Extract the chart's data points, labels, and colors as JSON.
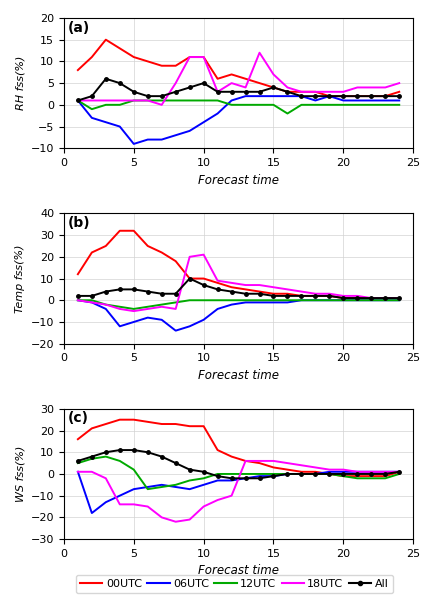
{
  "forecast_time": [
    1,
    2,
    3,
    4,
    5,
    6,
    7,
    8,
    9,
    10,
    11,
    12,
    13,
    14,
    15,
    16,
    17,
    18,
    19,
    20,
    21,
    22,
    23,
    24
  ],
  "panel_a": {
    "title": "(a)",
    "ylabel": "RH fss(%)",
    "ylim": [
      -10,
      20
    ],
    "yticks": [
      -10,
      -5,
      0,
      5,
      10,
      15,
      20
    ],
    "00UTC": [
      8,
      11,
      15,
      13,
      11,
      10,
      9,
      9,
      11,
      11,
      6,
      7,
      6,
      5,
      4,
      3,
      3,
      3,
      2,
      2,
      2,
      2,
      2,
      3
    ],
    "06UTC": [
      1,
      -3,
      -4,
      -5,
      -9,
      -8,
      -8,
      -7,
      -6,
      -4,
      -2,
      1,
      2,
      2,
      2,
      2,
      2,
      1,
      2,
      1,
      1,
      1,
      1,
      1
    ],
    "12UTC": [
      1,
      -1,
      0,
      0,
      1,
      1,
      1,
      1,
      1,
      1,
      1,
      0,
      0,
      0,
      0,
      -2,
      0,
      0,
      0,
      0,
      0,
      0,
      0,
      0
    ],
    "18UTC": [
      1,
      1,
      1,
      1,
      1,
      1,
      0,
      5,
      11,
      11,
      3,
      5,
      4,
      12,
      7,
      4,
      3,
      3,
      3,
      3,
      4,
      4,
      4,
      5
    ],
    "All": [
      1,
      2,
      6,
      5,
      3,
      2,
      2,
      3,
      4,
      5,
      3,
      3,
      3,
      3,
      4,
      3,
      2,
      2,
      2,
      2,
      2,
      2,
      2,
      2
    ]
  },
  "panel_b": {
    "title": "(b)",
    "ylabel": "Temp fss(%)",
    "ylim": [
      -20,
      40
    ],
    "yticks": [
      -20,
      -10,
      0,
      10,
      20,
      30,
      40
    ],
    "00UTC": [
      12,
      22,
      25,
      32,
      32,
      25,
      22,
      18,
      10,
      10,
      8,
      6,
      5,
      4,
      3,
      3,
      2,
      2,
      2,
      1,
      1,
      1,
      1,
      1
    ],
    "06UTC": [
      0,
      -1,
      -4,
      -12,
      -10,
      -8,
      -9,
      -14,
      -12,
      -9,
      -4,
      -2,
      -1,
      -1,
      -1,
      -1,
      0,
      0,
      0,
      0,
      0,
      0,
      0,
      0
    ],
    "12UTC": [
      0,
      0,
      -2,
      -3,
      -4,
      -3,
      -2,
      -1,
      0,
      0,
      0,
      0,
      0,
      0,
      0,
      0,
      0,
      0,
      0,
      0,
      0,
      0,
      0,
      0
    ],
    "18UTC": [
      0,
      -1,
      -2,
      -4,
      -5,
      -4,
      -3,
      -4,
      20,
      21,
      9,
      8,
      7,
      7,
      6,
      5,
      4,
      3,
      3,
      2,
      2,
      1,
      1,
      1
    ],
    "All": [
      2,
      2,
      4,
      5,
      5,
      4,
      3,
      3,
      10,
      7,
      5,
      4,
      3,
      3,
      2,
      2,
      2,
      2,
      2,
      1,
      1,
      1,
      1,
      1
    ]
  },
  "panel_c": {
    "title": "(c)",
    "ylabel": "WS fss(%)",
    "ylim": [
      -30,
      30
    ],
    "yticks": [
      -30,
      -20,
      -10,
      0,
      10,
      20,
      30
    ],
    "00UTC": [
      16,
      21,
      23,
      25,
      25,
      24,
      23,
      23,
      22,
      22,
      11,
      8,
      6,
      5,
      3,
      2,
      1,
      1,
      0,
      -1,
      -1,
      -1,
      -1,
      1
    ],
    "06UTC": [
      1,
      -18,
      -13,
      -10,
      -7,
      -6,
      -5,
      -6,
      -7,
      -5,
      -3,
      -3,
      -2,
      -1,
      -1,
      0,
      0,
      0,
      1,
      1,
      1,
      1,
      1,
      1
    ],
    "12UTC": [
      5,
      7,
      8,
      6,
      2,
      -7,
      -6,
      -5,
      -3,
      -2,
      0,
      0,
      0,
      0,
      0,
      0,
      0,
      0,
      0,
      -1,
      -2,
      -2,
      -2,
      0
    ],
    "18UTC": [
      1,
      1,
      -2,
      -14,
      -14,
      -15,
      -20,
      -22,
      -21,
      -15,
      -12,
      -10,
      6,
      6,
      6,
      5,
      4,
      3,
      2,
      2,
      1,
      1,
      1,
      1
    ],
    "All": [
      6,
      8,
      10,
      11,
      11,
      10,
      8,
      5,
      2,
      1,
      -1,
      -2,
      -2,
      -2,
      -1,
      0,
      0,
      0,
      0,
      0,
      0,
      0,
      0,
      1
    ]
  },
  "colors": {
    "00UTC": "#ff0000",
    "06UTC": "#0000ff",
    "12UTC": "#00aa00",
    "18UTC": "#ff00ff",
    "All": "#000000"
  },
  "legend_labels": [
    "00UTC",
    "06UTC",
    "12UTC",
    "18UTC",
    "All"
  ],
  "xlabel": "Forecast time",
  "xlim": [
    1,
    24
  ],
  "xticks": [
    0,
    5,
    10,
    15,
    20,
    25
  ]
}
